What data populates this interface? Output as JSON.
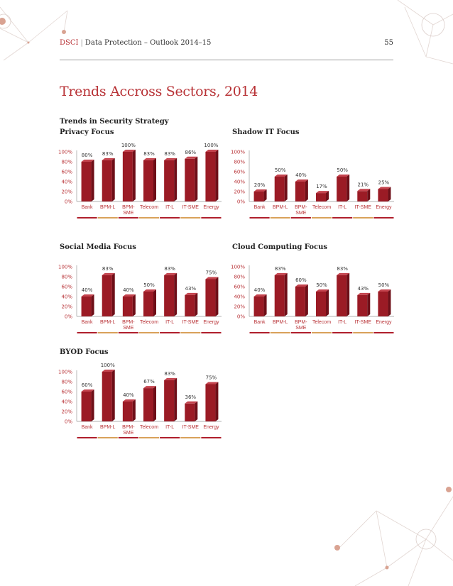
{
  "header": {
    "brand": "DSCI",
    "separator": "|",
    "publication": "Data Protection – Outlook 2014–15",
    "page_number": "55"
  },
  "page_title": "Trends Accross Sectors, 2014",
  "section_heading": "Trends in Security Strategy",
  "colors": {
    "accent": "#b83236",
    "bar_front": "#9b1b25",
    "bar_top": "#c4444e",
    "bar_side": "#6e0f18",
    "underline_red": "#b01f2c",
    "underline_gold": "#d9a15a"
  },
  "chart_data": [
    {
      "id": "privacy",
      "type": "bar",
      "title": "Privacy Focus",
      "categories": [
        "Bank",
        "BPM-L",
        "BPM-SME",
        "Telecom",
        "IT-L",
        "IT-SME",
        "Energy"
      ],
      "category_lines": [
        [
          "Bank"
        ],
        [
          "BPM-L"
        ],
        [
          "BPM-",
          "SME"
        ],
        [
          "Telecom"
        ],
        [
          "IT-L"
        ],
        [
          "IT-SME"
        ],
        [
          "Energy"
        ]
      ],
      "values": [
        80,
        83,
        100,
        83,
        83,
        86,
        100
      ],
      "labels": [
        "80%",
        "83%",
        "100%",
        "83%",
        "83%",
        "86%",
        "100%"
      ],
      "ylim": [
        0,
        100
      ],
      "yticks": [
        0,
        20,
        40,
        60,
        80,
        100
      ],
      "ytick_labels": [
        "0%",
        "20%",
        "40%",
        "60%",
        "80%",
        "100%"
      ]
    },
    {
      "id": "shadow-it",
      "type": "bar",
      "title": "Shadow IT Focus",
      "categories": [
        "Bank",
        "BPM-L",
        "BPM-SME",
        "Telecom",
        "IT-L",
        "IT-SME",
        "Energy"
      ],
      "category_lines": [
        [
          "Bank"
        ],
        [
          "BPM-L"
        ],
        [
          "BPM-",
          "SME"
        ],
        [
          "Telecom"
        ],
        [
          "IT-L"
        ],
        [
          "IT-SME"
        ],
        [
          "Energy"
        ]
      ],
      "values": [
        20,
        50,
        40,
        17,
        50,
        21,
        25
      ],
      "labels": [
        "20%",
        "50%",
        "40%",
        "17%",
        "50%",
        "21%",
        "25%"
      ],
      "ylim": [
        0,
        100
      ],
      "yticks": [
        0,
        20,
        40,
        60,
        80,
        100
      ],
      "ytick_labels": [
        "0%",
        "20%",
        "40%",
        "60%",
        "80%",
        "100%"
      ]
    },
    {
      "id": "social-media",
      "type": "bar",
      "title": "Social Media Focus",
      "categories": [
        "Bank",
        "BPM-L",
        "BPM-SME",
        "Telecom",
        "IT-L",
        "IT-SME",
        "Energy"
      ],
      "category_lines": [
        [
          "Bank"
        ],
        [
          "BPM-L"
        ],
        [
          "BPM-",
          "SME"
        ],
        [
          "Telecom"
        ],
        [
          "IT-L"
        ],
        [
          "IT-SME"
        ],
        [
          "Energy"
        ]
      ],
      "values": [
        40,
        83,
        40,
        50,
        83,
        43,
        75
      ],
      "labels": [
        "40%",
        "83%",
        "40%",
        "50%",
        "83%",
        "43%",
        "75%"
      ],
      "ylim": [
        0,
        100
      ],
      "yticks": [
        0,
        20,
        40,
        60,
        80,
        100
      ],
      "ytick_labels": [
        "0%",
        "20%",
        "40%",
        "60%",
        "80%",
        "100%"
      ]
    },
    {
      "id": "cloud-computing",
      "type": "bar",
      "title": "Cloud Computing Focus",
      "categories": [
        "Bank",
        "BPM-L",
        "BPM-SME",
        "Telecom",
        "IT-L",
        "IT-SME",
        "Energy"
      ],
      "category_lines": [
        [
          "Bank"
        ],
        [
          "BPM-L"
        ],
        [
          "BPM-",
          "SME"
        ],
        [
          "Telecom"
        ],
        [
          "IT-L"
        ],
        [
          "IT-SME"
        ],
        [
          "Energy"
        ]
      ],
      "values": [
        40,
        83,
        60,
        50,
        83,
        43,
        50
      ],
      "labels": [
        "40%",
        "83%",
        "60%",
        "50%",
        "83%",
        "43%",
        "50%"
      ],
      "ylim": [
        0,
        100
      ],
      "yticks": [
        0,
        20,
        40,
        60,
        80,
        100
      ],
      "ytick_labels": [
        "0%",
        "20%",
        "40%",
        "60%",
        "80%",
        "100%"
      ]
    },
    {
      "id": "byod",
      "type": "bar",
      "title": "BYOD Focus",
      "categories": [
        "Bank",
        "BPM-L",
        "BPM-SME",
        "Telecom",
        "IT-L",
        "IT-SME",
        "Energy"
      ],
      "category_lines": [
        [
          "Bank"
        ],
        [
          "BPM-L"
        ],
        [
          "BPM-",
          "SME"
        ],
        [
          "Telecom"
        ],
        [
          "IT-L"
        ],
        [
          "IT-SME"
        ],
        [
          "Energy"
        ]
      ],
      "values": [
        60,
        100,
        40,
        67,
        83,
        36,
        75
      ],
      "labels": [
        "60%",
        "100%",
        "40%",
        "67%",
        "83%",
        "36%",
        "75%"
      ],
      "ylim": [
        0,
        100
      ],
      "yticks": [
        0,
        20,
        40,
        60,
        80,
        100
      ],
      "ytick_labels": [
        "0%",
        "20%",
        "40%",
        "60%",
        "80%",
        "100%"
      ]
    }
  ]
}
